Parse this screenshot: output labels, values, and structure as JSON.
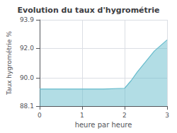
{
  "chart_data": {
    "type": "area",
    "title": "Evolution du taux d'hygrométrie",
    "xlabel": "heure par heure",
    "ylabel": "Taux hygrométrie %",
    "x": [
      0,
      0.5,
      1.0,
      1.5,
      2.0,
      2.15,
      2.3,
      2.5,
      2.7,
      3.0
    ],
    "values": [
      89.25,
      89.25,
      89.25,
      89.25,
      89.3,
      89.8,
      90.4,
      91.1,
      91.8,
      92.55
    ],
    "color": "#66bbcc",
    "xlim": [
      0,
      3
    ],
    "ylim": [
      88.1,
      93.9
    ],
    "xticks": [
      0,
      1,
      2,
      3
    ],
    "yticks": [
      88.1,
      {
        "value": 90.0,
        "label": "90.0"
      },
      {
        "value": 92.0,
        "label": "92.0"
      },
      93.9
    ],
    "grid": true
  }
}
